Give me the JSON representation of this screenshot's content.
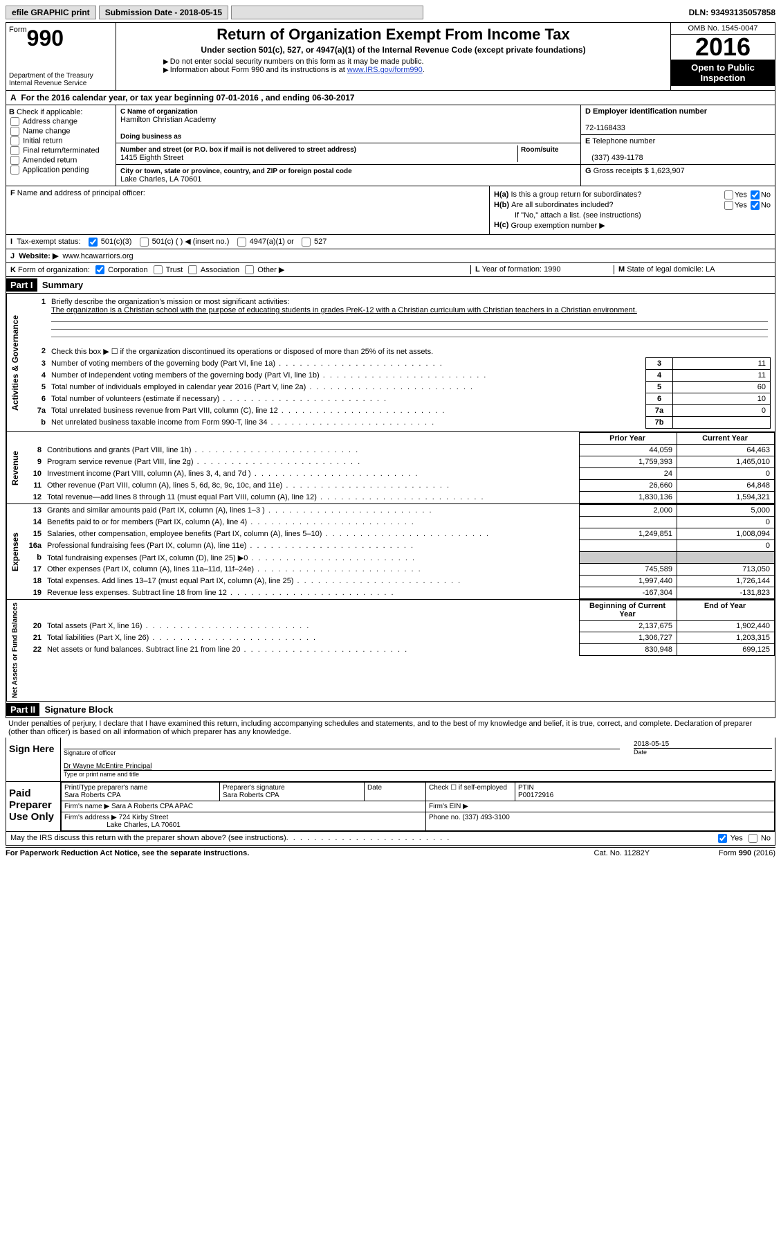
{
  "topbar": {
    "efile": "efile GRAPHIC print",
    "submission_label": "Submission Date - 2018-05-15",
    "dln": "DLN: 93493135057858"
  },
  "header": {
    "form_word": "Form",
    "form_num": "990",
    "dept1": "Department of the Treasury",
    "dept2": "Internal Revenue Service",
    "title": "Return of Organization Exempt From Income Tax",
    "subtitle": "Under section 501(c), 527, or 4947(a)(1) of the Internal Revenue Code (except private foundations)",
    "note1": "Do not enter social security numbers on this form as it may be made public.",
    "note2_pre": "Information about Form 990 and its instructions is at ",
    "note2_link": "www.IRS.gov/form990",
    "omb": "OMB No. 1545-0047",
    "year": "2016",
    "open1": "Open to Public",
    "open2": "Inspection"
  },
  "A": {
    "text_pre": "For the 2016 calendar year, or tax year beginning ",
    "begin": "07-01-2016",
    "mid": " , and ending ",
    "end": "06-30-2017"
  },
  "B": {
    "label": "Check if applicable:",
    "opts": [
      "Address change",
      "Name change",
      "Initial return",
      "Final return/terminated",
      "Amended return",
      "Application pending"
    ]
  },
  "C": {
    "name_label": "Name of organization",
    "name": "Hamilton Christian Academy",
    "dba_label": "Doing business as",
    "dba": "",
    "street_label": "Number and street (or P.O. box if mail is not delivered to street address)",
    "room_label": "Room/suite",
    "street": "1415 Eighth Street",
    "city_label": "City or town, state or province, country, and ZIP or foreign postal code",
    "city": "Lake Charles, LA  70601"
  },
  "D": {
    "label": "Employer identification number",
    "value": "72-1168433"
  },
  "E": {
    "label": "Telephone number",
    "value": "(337) 439-1178"
  },
  "G": {
    "label": "Gross receipts $",
    "value": "1,623,907"
  },
  "F": {
    "label": "Name and address of principal officer:",
    "value": ""
  },
  "H": {
    "a": "Is this a group return for subordinates?",
    "b": "Are all subordinates included?",
    "b_note": "If \"No,\" attach a list. (see instructions)",
    "c": "Group exemption number ▶",
    "yes": "Yes",
    "no": "No"
  },
  "I": {
    "label": "Tax-exempt status:",
    "o1": "501(c)(3)",
    "o2": "501(c) (  ) ◀ (insert no.)",
    "o3": "4947(a)(1) or",
    "o4": "527"
  },
  "J": {
    "label": "Website: ▶",
    "value": "www.hcawarriors.org"
  },
  "K": {
    "label": "Form of organization:",
    "o1": "Corporation",
    "o2": "Trust",
    "o3": "Association",
    "o4": "Other ▶",
    "L_label": "Year of formation:",
    "L_value": "1990",
    "M_label": "State of legal domicile:",
    "M_value": "LA"
  },
  "part1": {
    "header": "Part I",
    "title": "Summary",
    "l1": "Briefly describe the organization's mission or most significant activities:",
    "mission": "The organization is a Christian school with the purpose of educating students in grades PreK-12 with a Christian curriculum with Christian teachers in a Christian environment.",
    "l2": "Check this box ▶ ☐  if the organization discontinued its operations or disposed of more than 25% of its net assets.",
    "rows_gov": [
      {
        "n": "3",
        "desc": "Number of voting members of the governing body (Part VI, line 1a)",
        "box": "3",
        "val": "11"
      },
      {
        "n": "4",
        "desc": "Number of independent voting members of the governing body (Part VI, line 1b)",
        "box": "4",
        "val": "11"
      },
      {
        "n": "5",
        "desc": "Total number of individuals employed in calendar year 2016 (Part V, line 2a)",
        "box": "5",
        "val": "60"
      },
      {
        "n": "6",
        "desc": "Total number of volunteers (estimate if necessary)",
        "box": "6",
        "val": "10"
      },
      {
        "n": "7a",
        "desc": "Total unrelated business revenue from Part VIII, column (C), line 12",
        "box": "7a",
        "val": "0"
      },
      {
        "n": "b",
        "desc": "Net unrelated business taxable income from Form 990-T, line 34",
        "box": "7b",
        "val": ""
      }
    ],
    "col_prior": "Prior Year",
    "col_current": "Current Year",
    "rows_rev": [
      {
        "n": "8",
        "desc": "Contributions and grants (Part VIII, line 1h)",
        "py": "44,059",
        "cy": "64,463"
      },
      {
        "n": "9",
        "desc": "Program service revenue (Part VIII, line 2g)",
        "py": "1,759,393",
        "cy": "1,465,010"
      },
      {
        "n": "10",
        "desc": "Investment income (Part VIII, column (A), lines 3, 4, and 7d )",
        "py": "24",
        "cy": "0"
      },
      {
        "n": "11",
        "desc": "Other revenue (Part VIII, column (A), lines 5, 6d, 8c, 9c, 10c, and 11e)",
        "py": "26,660",
        "cy": "64,848"
      },
      {
        "n": "12",
        "desc": "Total revenue—add lines 8 through 11 (must equal Part VIII, column (A), line 12)",
        "py": "1,830,136",
        "cy": "1,594,321"
      }
    ],
    "rows_exp": [
      {
        "n": "13",
        "desc": "Grants and similar amounts paid (Part IX, column (A), lines 1–3 )",
        "py": "2,000",
        "cy": "5,000"
      },
      {
        "n": "14",
        "desc": "Benefits paid to or for members (Part IX, column (A), line 4)",
        "py": "",
        "cy": "0"
      },
      {
        "n": "15",
        "desc": "Salaries, other compensation, employee benefits (Part IX, column (A), lines 5–10)",
        "py": "1,249,851",
        "cy": "1,008,094"
      },
      {
        "n": "16a",
        "desc": "Professional fundraising fees (Part IX, column (A), line 11e)",
        "py": "",
        "cy": "0"
      },
      {
        "n": "b",
        "desc": "Total fundraising expenses (Part IX, column (D), line 25) ▶0",
        "py": "shade",
        "cy": "shade"
      },
      {
        "n": "17",
        "desc": "Other expenses (Part IX, column (A), lines 11a–11d, 11f–24e)",
        "py": "745,589",
        "cy": "713,050"
      },
      {
        "n": "18",
        "desc": "Total expenses. Add lines 13–17 (must equal Part IX, column (A), line 25)",
        "py": "1,997,440",
        "cy": "1,726,144"
      },
      {
        "n": "19",
        "desc": "Revenue less expenses. Subtract line 18 from line 12",
        "py": "-167,304",
        "cy": "-131,823"
      }
    ],
    "col_begin": "Beginning of Current Year",
    "col_end": "End of Year",
    "rows_net": [
      {
        "n": "20",
        "desc": "Total assets (Part X, line 16)",
        "py": "2,137,675",
        "cy": "1,902,440"
      },
      {
        "n": "21",
        "desc": "Total liabilities (Part X, line 26)",
        "py": "1,306,727",
        "cy": "1,203,315"
      },
      {
        "n": "22",
        "desc": "Net assets or fund balances. Subtract line 21 from line 20",
        "py": "830,948",
        "cy": "699,125"
      }
    ]
  },
  "part2": {
    "header": "Part II",
    "title": "Signature Block",
    "penalties": "Under penalties of perjury, I declare that I have examined this return, including accompanying schedules and statements, and to the best of my knowledge and belief, it is true, correct, and complete. Declaration of preparer (other than officer) is based on all information of which preparer has any knowledge.",
    "sign_here": "Sign Here",
    "sig_officer": "Signature of officer",
    "date_label": "Date",
    "sig_date": "2018-05-15",
    "officer_name": "Dr Wayne McEntire Principal",
    "type_name": "Type or print name and title",
    "paid_prep": "Paid Preparer Use Only",
    "prep_name_label": "Print/Type preparer's name",
    "prep_name": "Sara Roberts CPA",
    "prep_sig_label": "Preparer's signature",
    "prep_sig": "Sara Roberts CPA",
    "prep_date_label": "Date",
    "check_self": "Check ☐ if self-employed",
    "ptin_label": "PTIN",
    "ptin": "P00172916",
    "firm_name_label": "Firm's name    ▶",
    "firm_name": "Sara A Roberts CPA APAC",
    "firm_ein_label": "Firm's EIN ▶",
    "firm_addr_label": "Firm's address ▶",
    "firm_addr1": "724 Kirby Street",
    "firm_addr2": "Lake Charles, LA  70601",
    "firm_phone_label": "Phone no.",
    "firm_phone": "(337) 493-3100",
    "discuss": "May the IRS discuss this return with the preparer shown above? (see instructions)",
    "yes": "Yes",
    "no": "No"
  },
  "footer": {
    "f1": "For Paperwork Reduction Act Notice, see the separate instructions.",
    "f2": "Cat. No. 11282Y",
    "f3": "Form 990 (2016)"
  },
  "tabs": {
    "gov": "Activities & Governance",
    "rev": "Revenue",
    "exp": "Expenses",
    "net": "Net Assets or Fund Balances"
  }
}
